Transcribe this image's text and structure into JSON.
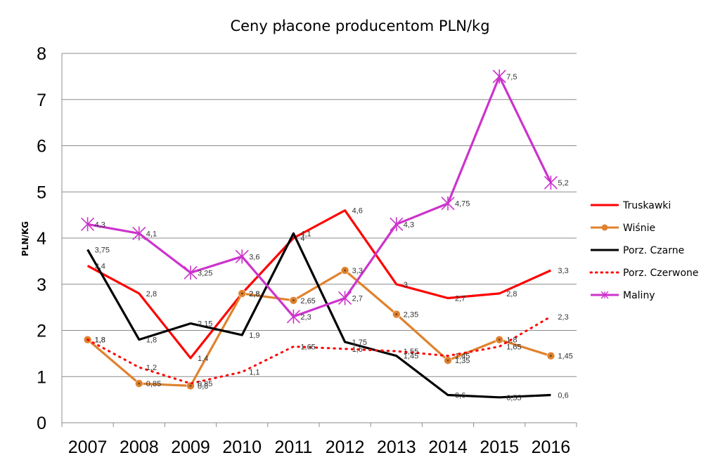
{
  "chart_data": {
    "type": "line",
    "title": "Ceny płacone producentom PLN/kg",
    "xlabel": "",
    "ylabel": "PLN/KG",
    "ylim": [
      0,
      8
    ],
    "yticks": [
      "0",
      "1",
      "2",
      "3",
      "4",
      "5",
      "6",
      "7",
      "8"
    ],
    "categories": [
      "2007",
      "2008",
      "2009",
      "2010",
      "2011",
      "2012",
      "2013",
      "2014",
      "2015",
      "2016"
    ],
    "grid": "horizontal",
    "legend_position": "right",
    "series": [
      {
        "name": "Truskawki",
        "color": "#ff0000",
        "style": "solid",
        "marker": "none",
        "values": [
          3.4,
          2.8,
          1.4,
          2.8,
          4.0,
          4.6,
          3.0,
          2.7,
          2.8,
          3.3
        ],
        "labels": [
          "3,4",
          "2,8",
          "1,4",
          "2,8",
          "4",
          "4,6",
          "3",
          "2,7",
          "2,8",
          "3,3"
        ]
      },
      {
        "name": "Wiśnie",
        "color": "#e0822e",
        "style": "solid",
        "marker": "dot",
        "values": [
          1.8,
          0.85,
          0.8,
          2.8,
          2.65,
          3.3,
          2.35,
          1.35,
          1.8,
          1.45
        ],
        "labels": [
          "1,8",
          "0,85",
          "0,8",
          "2,8",
          "2,65",
          "3,3",
          "2,35",
          "1,35",
          "1,8",
          "1,45"
        ]
      },
      {
        "name": "Porz. Czarne",
        "color": "#000000",
        "style": "solid",
        "marker": "none",
        "values": [
          3.75,
          1.8,
          2.15,
          1.9,
          4.1,
          1.75,
          1.45,
          0.6,
          0.55,
          0.6
        ],
        "labels": [
          "3,75",
          "1,8",
          "2,15",
          "1,9",
          "4,1",
          "1,75",
          "1,45",
          "0,6",
          "0,55",
          "0,6"
        ]
      },
      {
        "name": "Porz. Czerwone",
        "color": "#ff0000",
        "style": "dotted",
        "marker": "none",
        "values": [
          1.8,
          1.2,
          0.85,
          1.1,
          1.65,
          1.6,
          1.55,
          1.45,
          1.65,
          2.3
        ],
        "labels": [
          "1,8",
          "1,2",
          "0,85",
          "1,1",
          "1,65",
          "1,6",
          "1,55",
          "1,45",
          "1,65",
          "2,3"
        ]
      },
      {
        "name": "Maliny",
        "color": "#cc33cc",
        "style": "solid",
        "marker": "star",
        "values": [
          4.3,
          4.1,
          3.25,
          3.6,
          2.3,
          2.7,
          4.3,
          4.75,
          7.5,
          5.2
        ],
        "labels": [
          "4,3",
          "4,1",
          "3,25",
          "3,6",
          "2,3",
          "2,7",
          "4,3",
          "4,75",
          "7,5",
          "5,2"
        ]
      }
    ]
  }
}
